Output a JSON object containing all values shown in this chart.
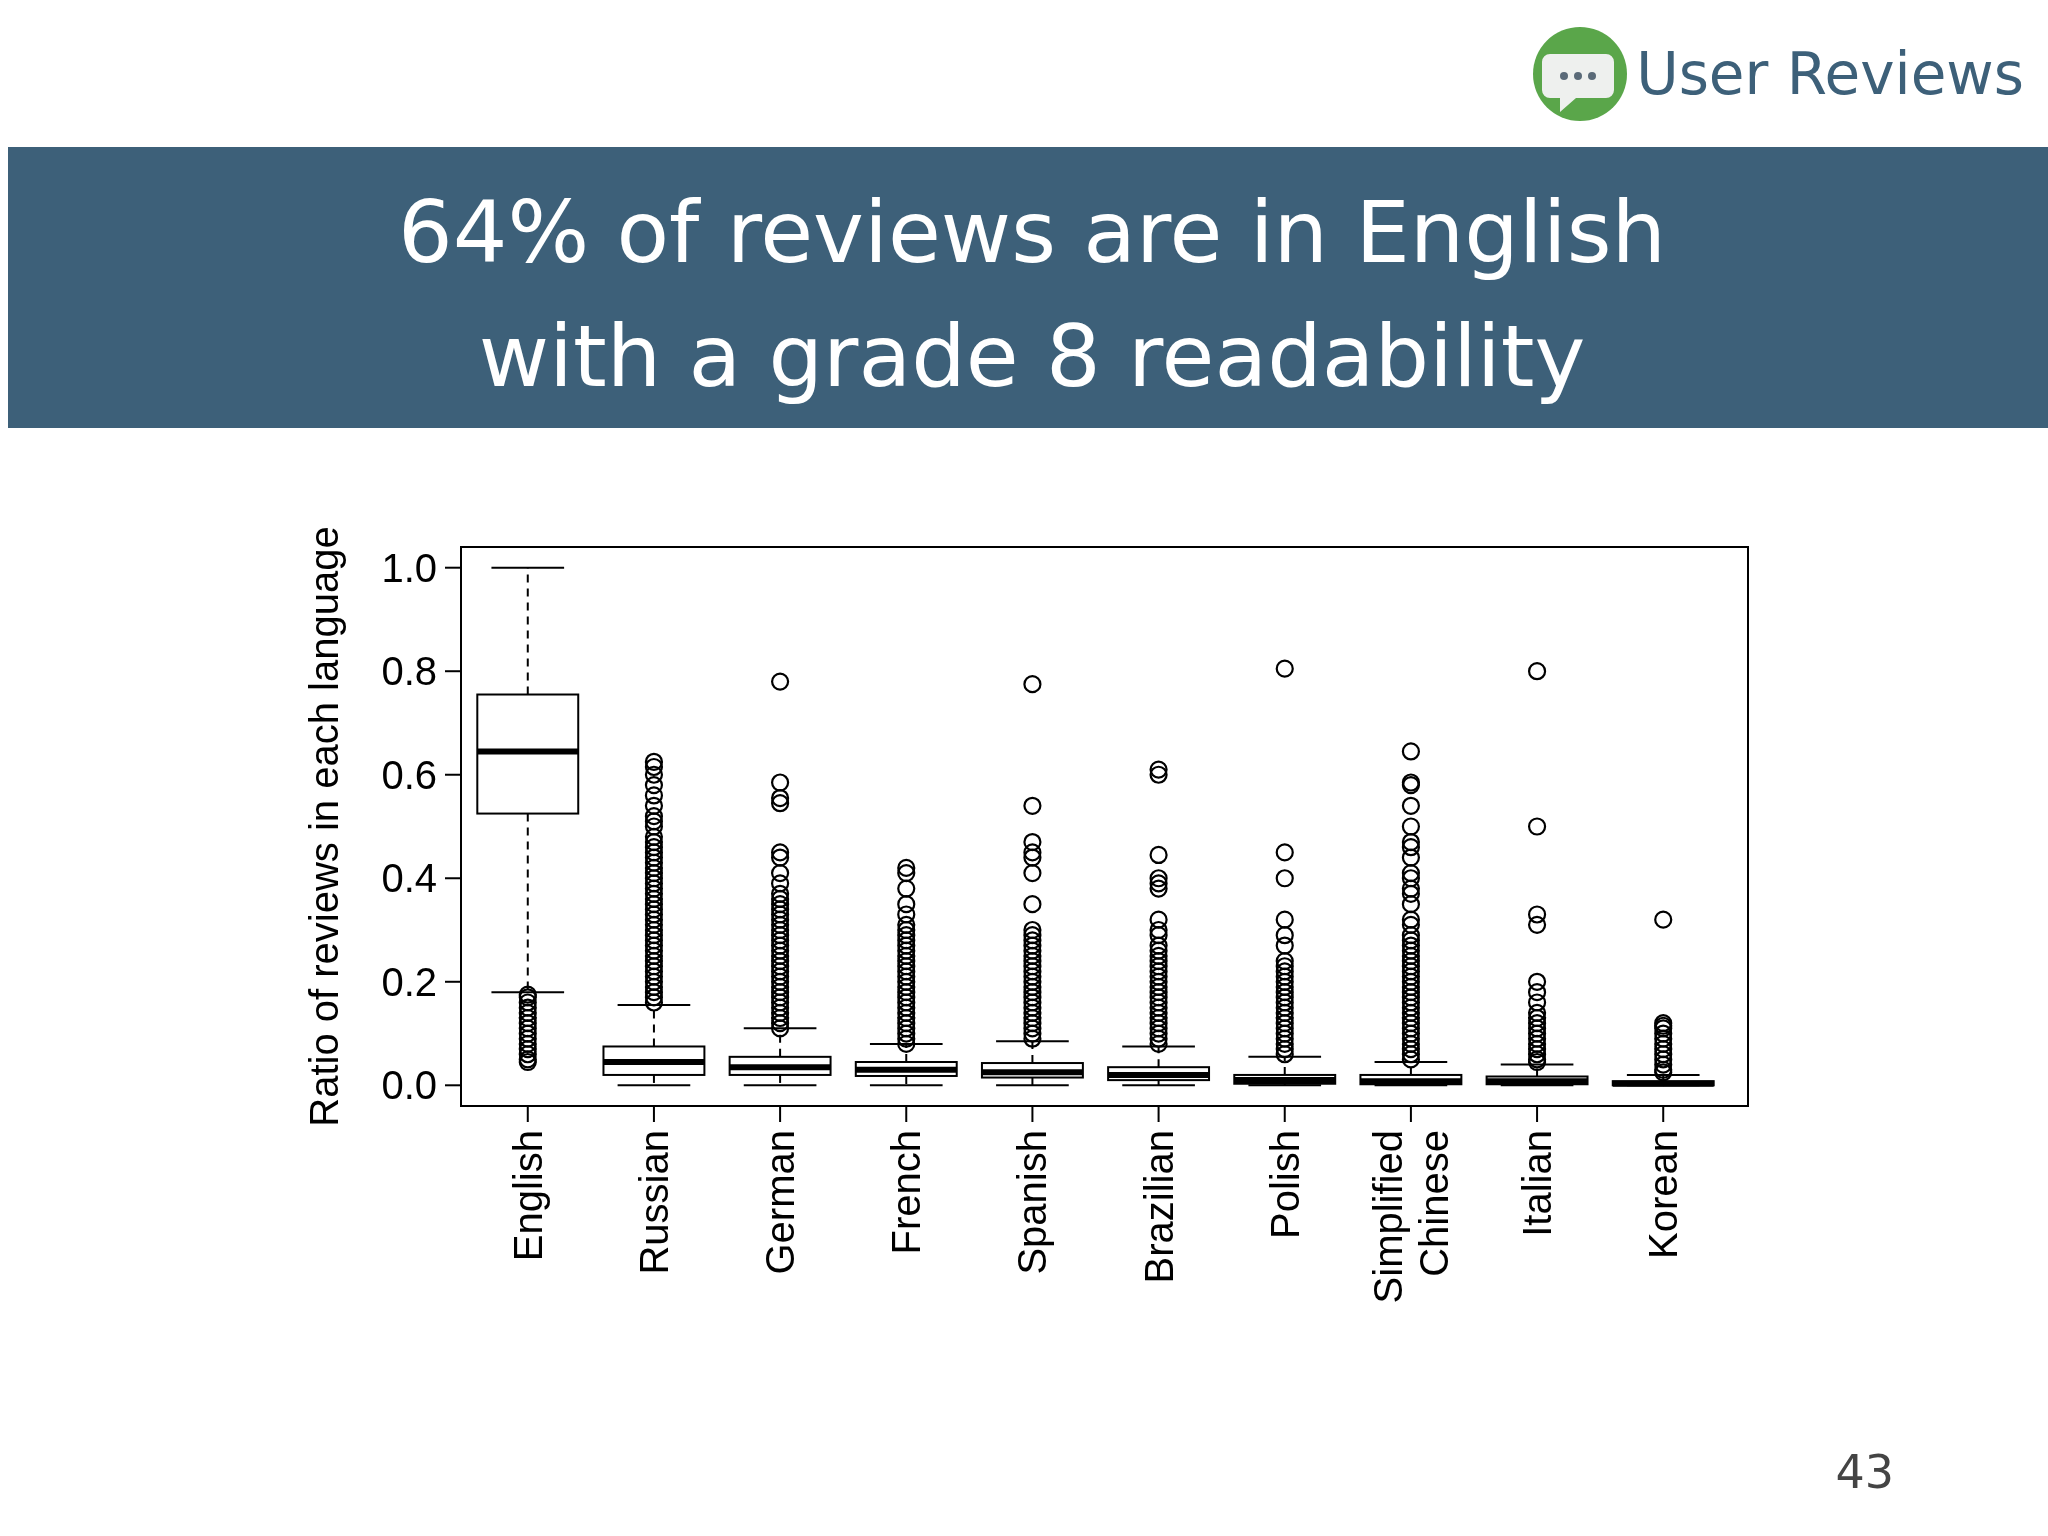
{
  "chart_data": {
    "type": "box",
    "title": "64% of reviews are in English\nwith a grade 8 readability",
    "ylabel": "Ratio of reviews in each language",
    "annotations": [
      "User Reviews",
      "43"
    ],
    "categories": [
      "English",
      "Russian",
      "German",
      "French",
      "Spanish",
      "Brazilian",
      "Polish",
      "Simplified Chinese",
      "Italian",
      "Korean"
    ],
    "ylim": [
      -0.04,
      1.04
    ],
    "yticks": [
      {
        "value": 0,
        "label": "0.0"
      },
      0.2,
      0.4,
      0.6,
      0.8,
      {
        "value": 1,
        "label": "1.0"
      }
    ],
    "grid": false,
    "boxes": [
      {
        "low": 0.18,
        "q1": 0.525,
        "median": 0.645,
        "q3": 0.755,
        "high": 1.0,
        "outliers": [
          0.175,
          0.17,
          0.16,
          0.15,
          0.14,
          0.13,
          0.12,
          0.11,
          0.1,
          0.09,
          0.08,
          0.07,
          0.06,
          0.05,
          0.045
        ]
      },
      {
        "low": 0,
        "q1": 0.02,
        "median": 0.045,
        "q3": 0.075,
        "high": 0.155,
        "outliers": [
          0.625,
          0.615,
          0.6,
          0.58,
          0.56,
          0.54,
          0.52,
          0.51,
          0.5,
          0.48,
          0.47,
          0.46,
          0.45,
          0.44,
          0.43,
          0.42,
          0.41,
          0.4,
          0.39,
          0.38,
          0.37,
          0.36,
          0.35,
          0.34,
          0.33,
          0.32,
          0.31,
          0.3,
          0.29,
          0.28,
          0.27,
          0.26,
          0.25,
          0.24,
          0.23,
          0.22,
          0.21,
          0.2,
          0.19,
          0.18,
          0.17,
          0.16
        ]
      },
      {
        "low": 0,
        "q1": 0.02,
        "median": 0.035,
        "q3": 0.055,
        "high": 0.11,
        "outliers": [
          0.78,
          0.585,
          0.555,
          0.545,
          0.45,
          0.44,
          0.41,
          0.39,
          0.37,
          0.36,
          0.35,
          0.34,
          0.33,
          0.32,
          0.31,
          0.3,
          0.29,
          0.28,
          0.27,
          0.26,
          0.25,
          0.24,
          0.23,
          0.22,
          0.21,
          0.2,
          0.19,
          0.18,
          0.17,
          0.16,
          0.15,
          0.14,
          0.13,
          0.12,
          0.11
        ]
      },
      {
        "low": 0,
        "q1": 0.018,
        "median": 0.03,
        "q3": 0.045,
        "high": 0.08,
        "outliers": [
          0.42,
          0.41,
          0.38,
          0.35,
          0.33,
          0.31,
          0.3,
          0.29,
          0.28,
          0.27,
          0.26,
          0.25,
          0.24,
          0.23,
          0.22,
          0.21,
          0.2,
          0.19,
          0.18,
          0.17,
          0.16,
          0.15,
          0.14,
          0.13,
          0.12,
          0.11,
          0.1,
          0.09,
          0.08
        ]
      },
      {
        "low": 0,
        "q1": 0.015,
        "median": 0.025,
        "q3": 0.043,
        "high": 0.085,
        "outliers": [
          0.775,
          0.54,
          0.47,
          0.45,
          0.44,
          0.41,
          0.35,
          0.3,
          0.29,
          0.28,
          0.27,
          0.26,
          0.25,
          0.24,
          0.23,
          0.22,
          0.21,
          0.2,
          0.19,
          0.18,
          0.17,
          0.16,
          0.15,
          0.14,
          0.13,
          0.12,
          0.11,
          0.1,
          0.09
        ]
      },
      {
        "low": 0,
        "q1": 0.01,
        "median": 0.02,
        "q3": 0.035,
        "high": 0.075,
        "outliers": [
          0.61,
          0.6,
          0.445,
          0.4,
          0.39,
          0.38,
          0.32,
          0.3,
          0.29,
          0.27,
          0.26,
          0.25,
          0.24,
          0.23,
          0.22,
          0.21,
          0.2,
          0.19,
          0.18,
          0.17,
          0.16,
          0.15,
          0.14,
          0.13,
          0.12,
          0.11,
          0.1,
          0.09,
          0.08
        ]
      },
      {
        "low": 0,
        "q1": 0.003,
        "median": 0.01,
        "q3": 0.02,
        "high": 0.055,
        "outliers": [
          0.805,
          0.45,
          0.4,
          0.32,
          0.29,
          0.27,
          0.24,
          0.23,
          0.22,
          0.21,
          0.2,
          0.19,
          0.18,
          0.17,
          0.16,
          0.15,
          0.14,
          0.13,
          0.12,
          0.11,
          0.1,
          0.09,
          0.08,
          0.07,
          0.06
        ]
      },
      {
        "low": 0,
        "q1": 0.002,
        "median": 0.008,
        "q3": 0.02,
        "high": 0.045,
        "outliers": [
          0.645,
          0.585,
          0.58,
          0.54,
          0.5,
          0.47,
          0.46,
          0.44,
          0.41,
          0.4,
          0.38,
          0.37,
          0.35,
          0.32,
          0.31,
          0.29,
          0.28,
          0.27,
          0.26,
          0.25,
          0.24,
          0.23,
          0.22,
          0.21,
          0.2,
          0.19,
          0.18,
          0.17,
          0.16,
          0.15,
          0.14,
          0.13,
          0.12,
          0.11,
          0.1,
          0.09,
          0.08,
          0.07,
          0.06,
          0.05
        ]
      },
      {
        "low": 0,
        "q1": 0.002,
        "median": 0.008,
        "q3": 0.017,
        "high": 0.04,
        "outliers": [
          0.8,
          0.5,
          0.33,
          0.31,
          0.2,
          0.18,
          0.16,
          0.14,
          0.13,
          0.12,
          0.11,
          0.1,
          0.09,
          0.08,
          0.07,
          0.06,
          0.05,
          0.045
        ]
      },
      {
        "low": 0,
        "q1": 0,
        "median": 0.003,
        "q3": 0.008,
        "high": 0.02,
        "outliers": [
          0.32,
          0.12,
          0.115,
          0.11,
          0.1,
          0.09,
          0.08,
          0.07,
          0.06,
          0.05,
          0.04,
          0.03,
          0.025
        ]
      }
    ]
  }
}
